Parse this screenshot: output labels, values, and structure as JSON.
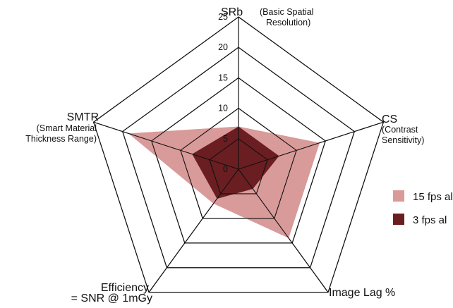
{
  "chart_data": {
    "type": "radar",
    "title": "",
    "axes": [
      {
        "name": "SRb",
        "sub": [
          "(Basic Spatial",
          "Resolution)"
        ]
      },
      {
        "name": "CS",
        "sub": [
          "(Contrast",
          "Sensitivity)"
        ]
      },
      {
        "name": "Image Lag %",
        "sub": []
      },
      {
        "name": "Efficiency",
        "sub": [
          "= SNR @ 1mGy"
        ]
      },
      {
        "name": "SMTR",
        "sub": [
          "(Smart Material",
          "Thickness Range)"
        ]
      }
    ],
    "ticks": [
      0,
      5,
      10,
      15,
      20,
      25
    ],
    "range": [
      0,
      25
    ],
    "grid": true,
    "legend_position": "right",
    "series": [
      {
        "name": "15 fps al",
        "color": "#d99a9a",
        "values": [
          7,
          14,
          14,
          7,
          19
        ]
      },
      {
        "name": "3 fps al",
        "color": "#6b1e22",
        "values": [
          7,
          7,
          4,
          6,
          8
        ]
      }
    ]
  }
}
